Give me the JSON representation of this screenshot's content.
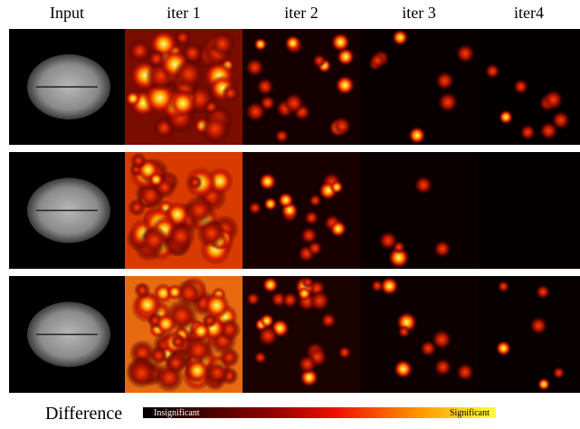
{
  "header": {
    "columns": [
      "Input",
      "iter 1",
      "iter 2",
      "iter 3",
      "iter4"
    ]
  },
  "legend": {
    "title": "Difference",
    "low": "Insignificant",
    "high": "Significant"
  }
}
